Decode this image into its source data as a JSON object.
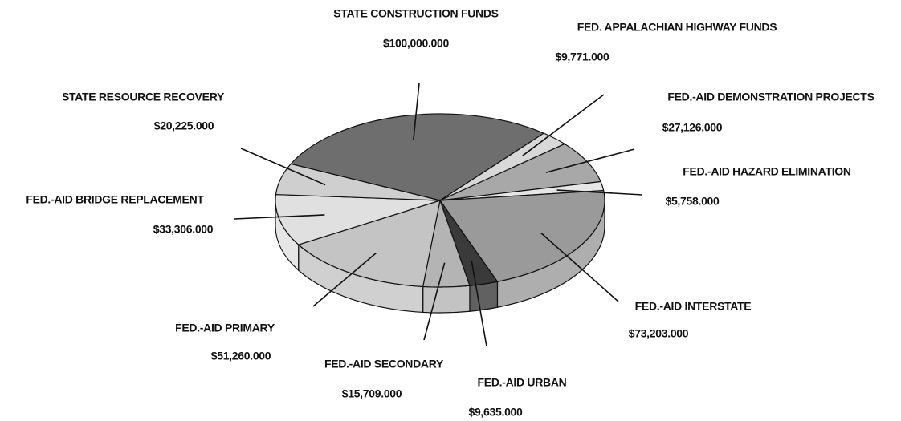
{
  "chart_data": {
    "type": "pie",
    "categories": [
      "STATE CONSTRUCTION FUNDS",
      "FED. APPALACHIAN HIGHWAY FUNDS",
      "FED.-AID DEMONSTRATION PROJECTS",
      "FED.-AID HAZARD ELIMINATION",
      "FED.-AID INTERSTATE",
      "FED.-AID URBAN",
      "FED.-AID SECONDARY",
      "FED.-AID PRIMARY",
      "FED.-AID BRIDGE REPLACEMENT",
      "STATE RESOURCE RECOVERY"
    ],
    "values": [
      100000000,
      9771000,
      27126000,
      5758000,
      73203000,
      9635000,
      15709000,
      51260000,
      33306000,
      20225000
    ],
    "value_labels": [
      "$100,000.000",
      "$9,771.000",
      "$27,126.000",
      "$5,758.000",
      "$73,203.000",
      "$9,635.000",
      "$15,709.000",
      "$51,260.000",
      "$33,306.000",
      "$20,225.000"
    ],
    "colors": [
      "#6e6e6e",
      "#d8d8d8",
      "#a8a8a8",
      "#e6e6e6",
      "#9a9a9a",
      "#3a3a3a",
      "#b4b4b4",
      "#c4c4c4",
      "#e0e0e0",
      "#cfcfcf"
    ]
  }
}
